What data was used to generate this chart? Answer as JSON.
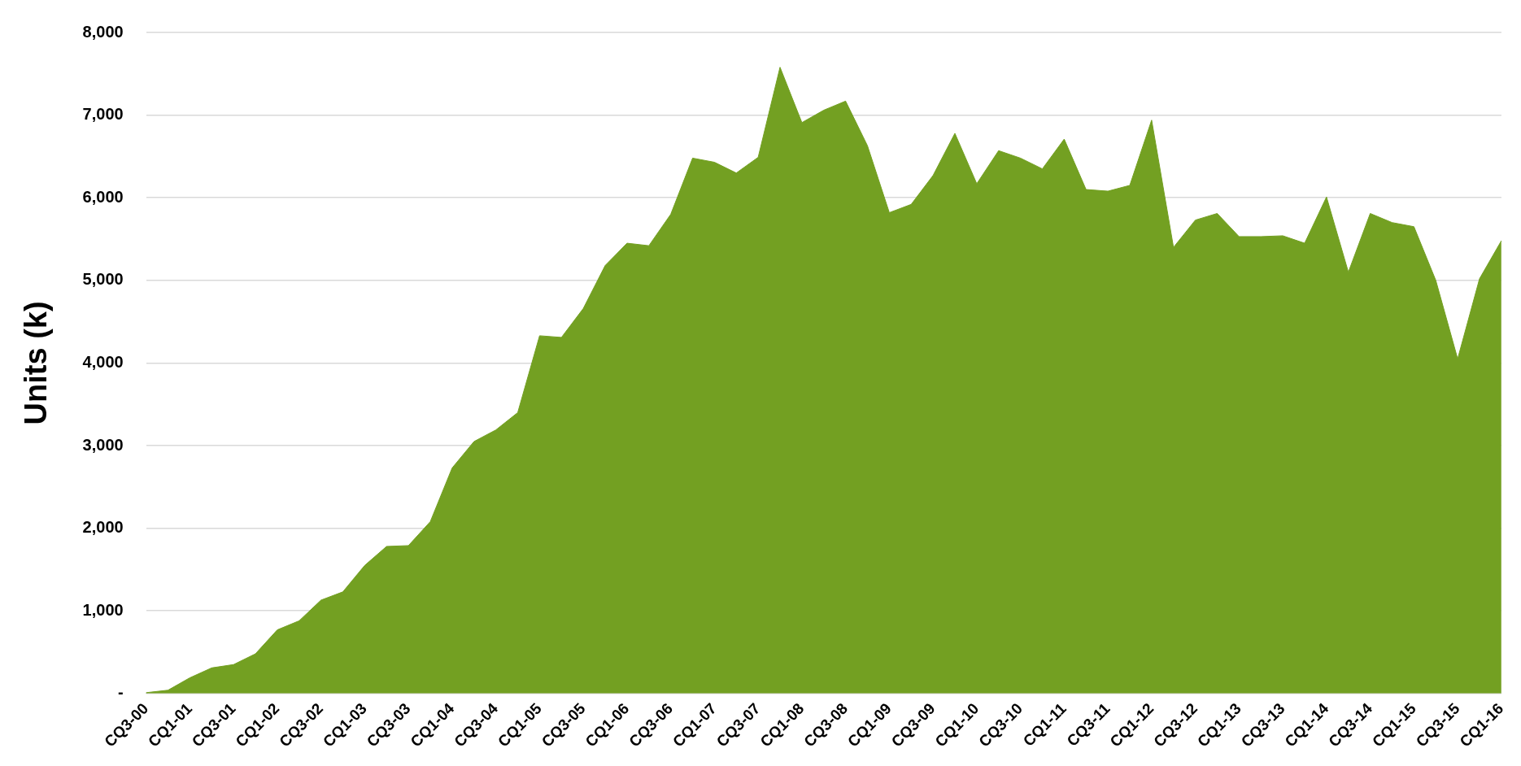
{
  "chart_data": {
    "type": "area",
    "ylabel": "Units (k)",
    "categories": [
      "CQ3-00",
      null,
      "CQ1-01",
      null,
      "CQ3-01",
      null,
      "CQ1-02",
      null,
      "CQ3-02",
      null,
      "CQ1-03",
      null,
      "CQ3-03",
      null,
      "CQ1-04",
      null,
      "CQ3-04",
      null,
      "CQ1-05",
      null,
      "CQ3-05",
      null,
      "CQ1-06",
      null,
      "CQ3-06",
      null,
      "CQ1-07",
      null,
      "CQ3-07",
      null,
      "CQ1-08",
      null,
      "CQ3-08",
      null,
      "CQ1-09",
      null,
      "CQ3-09",
      null,
      "CQ1-10",
      null,
      "CQ3-10",
      null,
      "CQ1-11",
      null,
      "CQ3-11",
      null,
      "CQ1-12",
      null,
      "CQ3-12",
      null,
      "CQ1-13",
      null,
      "CQ3-13",
      null,
      "CQ1-14",
      null,
      "CQ3-14",
      null,
      "CQ1-15",
      null,
      "CQ3-15",
      null,
      "CQ1-16"
    ],
    "series": [
      {
        "color": "#73a022",
        "values": [
          10,
          40,
          190,
          310,
          350,
          480,
          770,
          880,
          1130,
          1230,
          1550,
          1780,
          1790,
          2080,
          2730,
          3050,
          3190,
          3400,
          4330,
          4310,
          4660,
          5180,
          5450,
          5420,
          5800,
          6480,
          6430,
          6300,
          6490,
          7580,
          6910,
          7060,
          7170,
          6630,
          5820,
          5920,
          6270,
          6780,
          6170,
          6570,
          6480,
          6350,
          6710,
          6100,
          6080,
          6150,
          6940,
          5400,
          5730,
          5810,
          5530,
          5530,
          5540,
          5450,
          6010,
          5100,
          5810,
          5700,
          5650,
          5000,
          4050,
          5020,
          5480
        ]
      }
    ],
    "ylim": [
      0,
      8000
    ],
    "yticks": [
      {
        "value": 0,
        "label": "-"
      },
      {
        "value": 1000,
        "label": "1,000"
      },
      {
        "value": 2000,
        "label": "2,000"
      },
      {
        "value": 3000,
        "label": "3,000"
      },
      {
        "value": 4000,
        "label": "4,000"
      },
      {
        "value": 5000,
        "label": "5,000"
      },
      {
        "value": 6000,
        "label": "6,000"
      },
      {
        "value": 7000,
        "label": "7,000"
      },
      {
        "value": 8000,
        "label": "8,000"
      }
    ],
    "grid": "y",
    "legend": false,
    "marker": "none"
  }
}
